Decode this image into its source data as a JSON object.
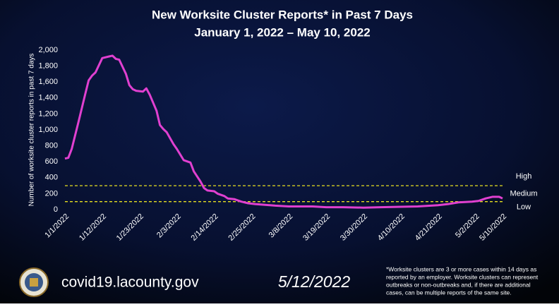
{
  "chart_data": {
    "type": "line",
    "title": "New Worksite Cluster Reports* in Past 7 Days",
    "subtitle": "January 1, 2022 – May 10, 2022",
    "y_label": "Number of worksite cluster reports in past 7 days",
    "color": "#e040d0",
    "x": [
      "1/1/2022",
      "1/2/2022",
      "1/3/2022",
      "1/5/2022",
      "1/7/2022",
      "1/8/2022",
      "1/9/2022",
      "1/10/2022",
      "1/12/2022",
      "1/14/2022",
      "1/15/2022",
      "1/16/2022",
      "1/17/2022",
      "1/19/2022",
      "1/20/2022",
      "1/21/2022",
      "1/22/2022",
      "1/24/2022",
      "1/25/2022",
      "1/26/2022",
      "1/28/2022",
      "1/29/2022",
      "1/30/2022",
      "1/31/2022",
      "2/2/2022",
      "2/3/2022",
      "2/5/2022",
      "2/7/2022",
      "2/8/2022",
      "2/10/2022",
      "2/11/2022",
      "2/12/2022",
      "2/14/2022",
      "2/15/2022",
      "2/17/2022",
      "2/18/2022",
      "2/20/2022",
      "2/22/2022",
      "2/24/2022",
      "2/26/2022",
      "3/1/2022",
      "3/4/2022",
      "3/8/2022",
      "3/12/2022",
      "3/15/2022",
      "3/19/2022",
      "3/24/2022",
      "3/30/2022",
      "4/4/2022",
      "4/10/2022",
      "4/15/2022",
      "4/21/2022",
      "4/24/2022",
      "4/27/2022",
      "5/1/2022",
      "5/3/2022",
      "5/5/2022",
      "5/7/2022",
      "5/9/2022",
      "5/10/2022"
    ],
    "values": [
      640,
      650,
      760,
      1100,
      1450,
      1620,
      1680,
      1720,
      1900,
      1920,
      1930,
      1890,
      1880,
      1700,
      1560,
      1510,
      1490,
      1480,
      1520,
      1440,
      1240,
      1060,
      1010,
      970,
      820,
      760,
      620,
      590,
      480,
      350,
      270,
      240,
      230,
      200,
      170,
      140,
      130,
      100,
      80,
      70,
      60,
      50,
      40,
      40,
      40,
      30,
      30,
      25,
      30,
      35,
      40,
      55,
      70,
      90,
      100,
      110,
      140,
      160,
      160,
      140
    ],
    "xlim": [
      "1/1/2022",
      "5/10/2022"
    ],
    "xticks": [
      "1/1/2022",
      "1/12/2022",
      "1/23/2022",
      "2/3/2022",
      "2/14/2022",
      "2/25/2022",
      "3/8/2022",
      "3/19/2022",
      "3/30/2022",
      "4/10/2022",
      "4/21/2022",
      "5/2/2022",
      "5/10/2022"
    ],
    "ylim": [
      0,
      2000
    ],
    "yticks": [
      0,
      200,
      400,
      600,
      800,
      {
        "value": 1000,
        "label": "1,000"
      },
      {
        "value": 1200,
        "label": "1,200"
      },
      {
        "value": 1400,
        "label": "1,400"
      },
      {
        "value": 1600,
        "label": "1,600"
      },
      {
        "value": 1800,
        "label": "1,800"
      },
      {
        "value": 2000,
        "label": "2,000"
      }
    ],
    "zones": [
      {
        "name": "High",
        "min": 300
      },
      {
        "name": "Medium",
        "min": 100,
        "max": 300
      },
      {
        "name": "Low",
        "max": 100
      }
    ],
    "zone_line_color": "#e8e020"
  },
  "footer": {
    "website": "covid19.lacounty.gov",
    "date": "5/12/2022",
    "note": [
      "*Worksite clusters are 3 or more cases within 14 days as",
      "reported by an employer. Worksite clusters can represent",
      "outbreaks or non-outbreaks and, if there are additional",
      "cases, can be multiple reports of the same site."
    ]
  }
}
